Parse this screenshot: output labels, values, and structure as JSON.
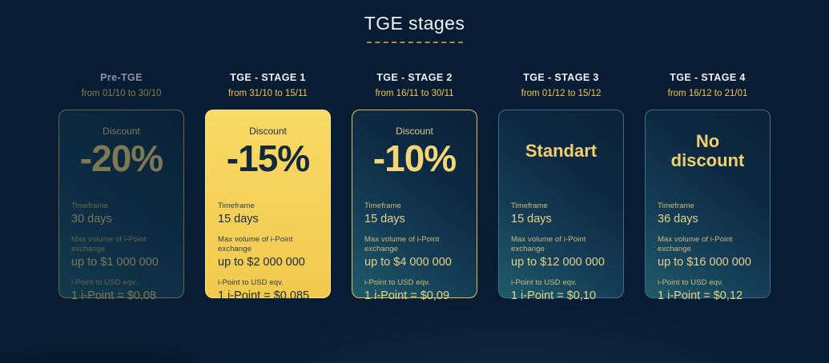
{
  "page": {
    "title": "TGE stages",
    "background_color": "#081c33",
    "accent_gold": "#f0c751",
    "accent_teal_border": "#3c6d88",
    "active_card_color": "#f5d058"
  },
  "stages": [
    {
      "name": "Pre-TGE",
      "dates": "from 01/10 to 30/10",
      "discount_label": "Discount",
      "discount_value": "-20%",
      "fields": [
        {
          "label": "Timeframe",
          "value": "30 days"
        },
        {
          "label": "Max volume of i-Point exchange",
          "value": "up to $1 000 000"
        },
        {
          "label": "i-Point to USD eqv.",
          "value": "1 i-Point = $0,08"
        }
      ]
    },
    {
      "name": "TGE - STAGE 1",
      "dates": "from 31/10 to 15/11",
      "discount_label": "Discount",
      "discount_value": "-15%",
      "fields": [
        {
          "label": "Timeframe",
          "value": "15 days"
        },
        {
          "label": "Max volume of i-Point exchange",
          "value": "up to $2 000 000"
        },
        {
          "label": "i-Point to USD eqv.",
          "value": "1 i-Point = $0,085"
        }
      ]
    },
    {
      "name": "TGE - STAGE 2",
      "dates": "from 16/11 to 30/11",
      "discount_label": "Discount",
      "discount_value": "-10%",
      "fields": [
        {
          "label": "Timeframe",
          "value": "15 days"
        },
        {
          "label": "Max volume of i-Point exchange",
          "value": "up to $4 000 000"
        },
        {
          "label": "i-Point to USD eqv.",
          "value": "1 i-Point = $0,09"
        }
      ]
    },
    {
      "name": "TGE - STAGE 3",
      "dates": "from 01/12 to 15/12",
      "headline": "Standart",
      "fields": [
        {
          "label": "Timeframe",
          "value": "15 days"
        },
        {
          "label": "Max volume of i-Point exchange",
          "value": "up to $12 000 000"
        },
        {
          "label": "i-Point to USD eqv.",
          "value": "1 i-Point = $0,10"
        }
      ]
    },
    {
      "name": "TGE - STAGE 4",
      "dates": "from 16/12 to 21/01",
      "headline": "No discount",
      "fields": [
        {
          "label": "Timeframe",
          "value": "36 days"
        },
        {
          "label": "Max volume of i-Point exchange",
          "value": "up to $16 000 000"
        },
        {
          "label": "i-Point to USD eqv.",
          "value": "1 i-Point = $0,12"
        }
      ]
    }
  ]
}
